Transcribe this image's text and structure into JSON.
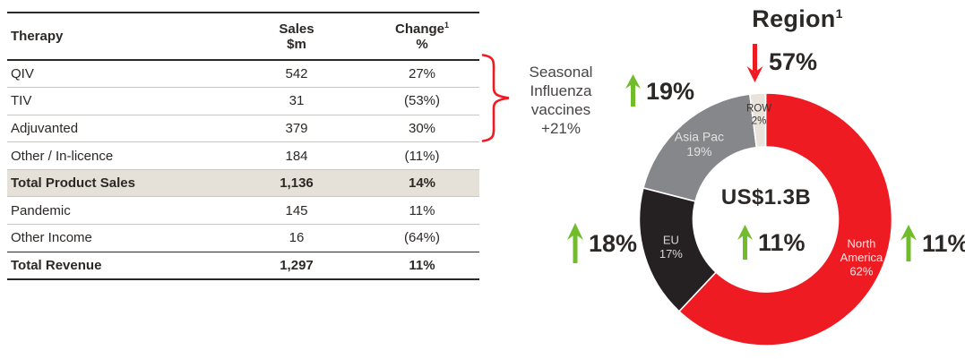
{
  "table": {
    "header": {
      "therapy": "Therapy",
      "sales_line1": "Sales",
      "sales_line2": "$m",
      "change_line1": "Change",
      "change_sup": "1",
      "change_line2": "%"
    },
    "rows": [
      {
        "therapy": "QIV",
        "sales": "542",
        "change": "27%"
      },
      {
        "therapy": "TIV",
        "sales": "31",
        "change": "(53%)"
      },
      {
        "therapy": "Adjuvanted",
        "sales": "379",
        "change": "30%"
      },
      {
        "therapy": "Other / In-licence",
        "sales": "184",
        "change": "(11%)"
      },
      {
        "therapy": "Total Product Sales",
        "sales": "1,136",
        "change": "14%"
      },
      {
        "therapy": "Pandemic",
        "sales": "145",
        "change": "11%"
      },
      {
        "therapy": "Other Income",
        "sales": "16",
        "change": "(64%)"
      },
      {
        "therapy": "Total Revenue",
        "sales": "1,297",
        "change": "11%"
      }
    ]
  },
  "brace_note": {
    "line1": "Seasonal",
    "line2": "Influenza",
    "line3": "vaccines",
    "line4": "+21%",
    "brace_color": "#ee1b22"
  },
  "chart_data": {
    "type": "pie",
    "title": "Region",
    "title_sup": "1",
    "center_total": "US$1.3B",
    "layout": {
      "donut": true,
      "outer_radius": 141,
      "inner_radius": 81,
      "start_angle_deg": 0,
      "direction": "clockwise",
      "segment_gap_color": "#ffffff"
    },
    "segments": [
      {
        "name": "North America",
        "value_pct": 62,
        "color": "#ee1b22",
        "label_lines": [
          "North",
          "America",
          "62%"
        ],
        "label_color": "#f9e9e9",
        "label_radius": 115,
        "label_size": 13
      },
      {
        "name": "EU",
        "value_pct": 17,
        "color": "#252122",
        "label_lines": [
          "EU",
          "17%"
        ],
        "label_color": "#d9d7d5",
        "label_radius": 110,
        "label_size": 13
      },
      {
        "name": "Asia Pac",
        "value_pct": 19,
        "color": "#85878a",
        "label_lines": [
          "Asia Pac",
          "19%"
        ],
        "label_color": "#e2e2e0",
        "label_radius": 112,
        "label_size": 14
      },
      {
        "name": "ROW",
        "value_pct": 2,
        "color": "#e8e4db",
        "label_lines": [
          "ROW",
          "2%"
        ],
        "label_color": "#3a3531",
        "label_radius": 118,
        "label_size": 11.5
      }
    ],
    "annotations": [
      {
        "target": "ROW",
        "value": "57%",
        "direction": "down",
        "arrow_color": "#ee1b22"
      },
      {
        "target": "Asia Pac",
        "value": "19%",
        "direction": "up",
        "arrow_color": "#71bc2b"
      },
      {
        "target": "EU",
        "value": "18%",
        "direction": "up",
        "arrow_color": "#71bc2b"
      },
      {
        "target": "North America",
        "value": "11%",
        "direction": "up",
        "arrow_color": "#71bc2b"
      },
      {
        "target": "Total",
        "value": "11%",
        "direction": "up",
        "arrow_color": "#71bc2b"
      }
    ]
  }
}
